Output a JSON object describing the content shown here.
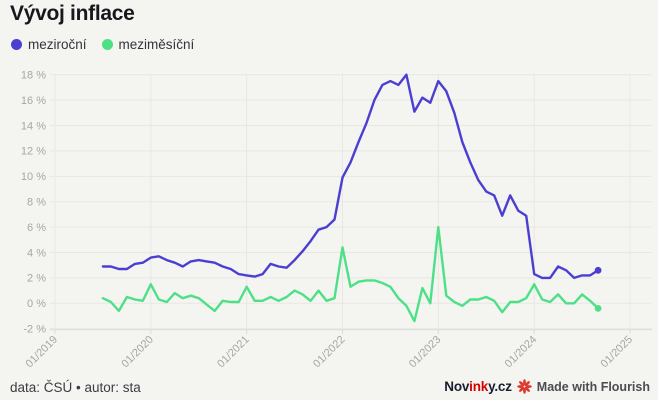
{
  "header": {
    "title": "Vývoj inflace"
  },
  "legend": {
    "items": [
      {
        "label": "meziroční",
        "color": "#4b3fd2"
      },
      {
        "label": "meziměsíční",
        "color": "#4de087"
      }
    ]
  },
  "footer": {
    "credit": "data: ČSÚ • autor: sta",
    "brand": {
      "prefix": "Nov",
      "highlight": "ink",
      "suffix": "y.cz"
    },
    "flourish_label": "Made with Flourish",
    "flourish_color": "#e03a2f"
  },
  "chart_data": {
    "type": "line",
    "title": "Vývoj inflace",
    "xlabel": "",
    "ylabel": "",
    "unit": "%",
    "ylim": [
      -2,
      18
    ],
    "grid": true,
    "legend_position": "top-left",
    "colors": {
      "background": "#f4f4f1",
      "gridline": "#e8e7e3",
      "axis": "#dbdad6",
      "tick_text": "#a6a6a8"
    },
    "y_ticks": [
      {
        "value": 18,
        "label": "18 %"
      },
      {
        "value": 16,
        "label": "16 %"
      },
      {
        "value": 14,
        "label": "14 %"
      },
      {
        "value": 12,
        "label": "12 %"
      },
      {
        "value": 10,
        "label": "10 %"
      },
      {
        "value": 8,
        "label": "8 %"
      },
      {
        "value": 6,
        "label": "6 %"
      },
      {
        "value": 4,
        "label": "4 %"
      },
      {
        "value": 2,
        "label": "2 %"
      },
      {
        "value": 0,
        "label": "0 %"
      },
      {
        "value": -2,
        "label": "-2 %"
      }
    ],
    "x_ticks": [
      {
        "month_offset": 0,
        "label": "01/2019"
      },
      {
        "month_offset": 12,
        "label": "01/2020"
      },
      {
        "month_offset": 24,
        "label": "01/2021"
      },
      {
        "month_offset": 36,
        "label": "01/2022"
      },
      {
        "month_offset": 48,
        "label": "01/2023"
      },
      {
        "month_offset": 60,
        "label": "01/2024"
      },
      {
        "month_offset": 72,
        "label": "01/2025"
      }
    ],
    "x_start_month_offset": 6,
    "x": [
      "07/2019",
      "08/2019",
      "09/2019",
      "10/2019",
      "11/2019",
      "12/2019",
      "01/2020",
      "02/2020",
      "03/2020",
      "04/2020",
      "05/2020",
      "06/2020",
      "07/2020",
      "08/2020",
      "09/2020",
      "10/2020",
      "11/2020",
      "12/2020",
      "01/2021",
      "02/2021",
      "03/2021",
      "04/2021",
      "05/2021",
      "06/2021",
      "07/2021",
      "08/2021",
      "09/2021",
      "10/2021",
      "11/2021",
      "12/2021",
      "01/2022",
      "02/2022",
      "03/2022",
      "04/2022",
      "05/2022",
      "06/2022",
      "07/2022",
      "08/2022",
      "09/2022",
      "10/2022",
      "11/2022",
      "12/2022",
      "01/2023",
      "02/2023",
      "03/2023",
      "04/2023",
      "05/2023",
      "06/2023",
      "07/2023",
      "08/2023",
      "09/2023",
      "10/2023",
      "11/2023",
      "12/2023",
      "01/2024",
      "02/2024",
      "03/2024",
      "04/2024",
      "05/2024",
      "06/2024",
      "07/2024",
      "08/2024",
      "09/2024"
    ],
    "series": [
      {
        "name": "meziroční",
        "color": "#4b3fd2",
        "end_marker": true,
        "values": [
          2.9,
          2.9,
          2.7,
          2.7,
          3.1,
          3.2,
          3.6,
          3.7,
          3.4,
          3.2,
          2.9,
          3.3,
          3.4,
          3.3,
          3.2,
          2.9,
          2.7,
          2.3,
          2.2,
          2.1,
          2.3,
          3.1,
          2.9,
          2.8,
          3.4,
          4.1,
          4.9,
          5.8,
          6.0,
          6.6,
          9.9,
          11.1,
          12.7,
          14.2,
          16.0,
          17.2,
          17.5,
          17.2,
          18.0,
          15.1,
          16.2,
          15.8,
          17.5,
          16.7,
          15.0,
          12.7,
          11.1,
          9.7,
          8.8,
          8.5,
          6.9,
          8.5,
          7.3,
          6.9,
          2.3,
          2.0,
          2.0,
          2.9,
          2.6,
          2.0,
          2.2,
          2.2,
          2.6
        ]
      },
      {
        "name": "meziměsíční",
        "color": "#4de087",
        "end_marker": true,
        "values": [
          0.4,
          0.1,
          -0.6,
          0.5,
          0.3,
          0.2,
          1.5,
          0.3,
          0.1,
          0.8,
          0.4,
          0.6,
          0.4,
          -0.1,
          -0.6,
          0.2,
          0.1,
          0.1,
          1.3,
          0.2,
          0.2,
          0.5,
          0.2,
          0.5,
          1.0,
          0.7,
          0.2,
          1.0,
          0.2,
          0.4,
          4.4,
          1.3,
          1.7,
          1.8,
          1.8,
          1.6,
          1.3,
          0.4,
          -0.2,
          -1.4,
          1.2,
          0.0,
          6.0,
          0.6,
          0.1,
          -0.2,
          0.3,
          0.3,
          0.5,
          0.2,
          -0.7,
          0.1,
          0.1,
          0.4,
          1.5,
          0.3,
          0.1,
          0.7,
          0.0,
          0.0,
          0.7,
          0.2,
          -0.4
        ]
      }
    ]
  }
}
